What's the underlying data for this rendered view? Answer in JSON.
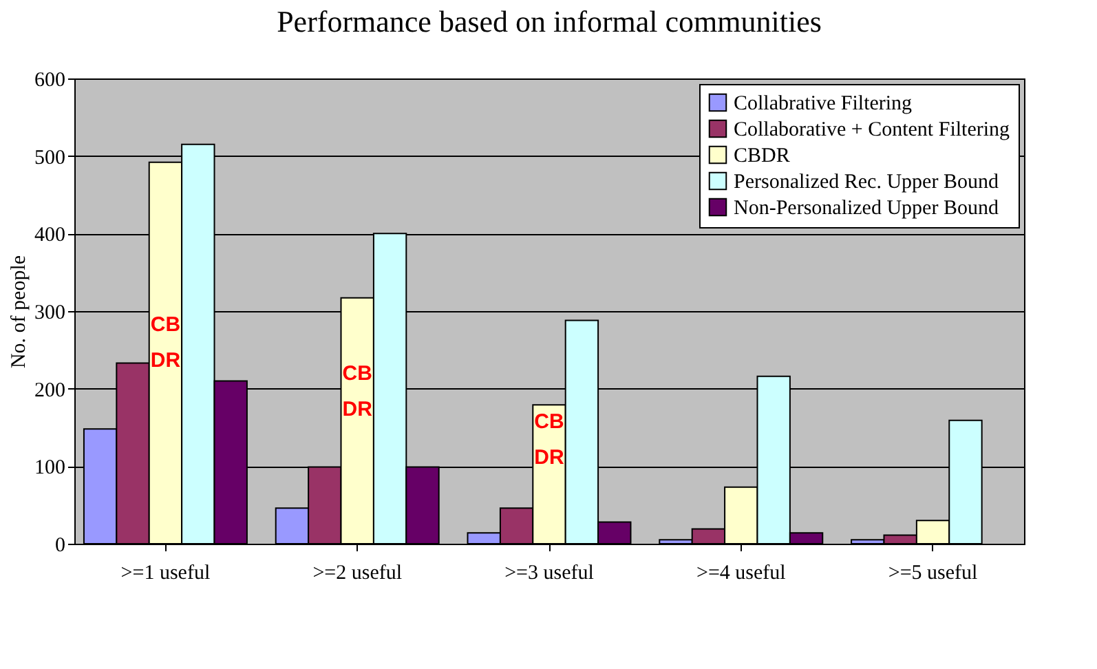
{
  "chart_data": {
    "type": "bar",
    "title": "Performance based on informal communities",
    "ylabel": "No. of people",
    "categories": [
      ">=1 useful",
      ">=2 useful",
      ">=3 useful",
      ">=4 useful",
      ">=5 useful"
    ],
    "series": [
      {
        "name": "Collabrative Filtering",
        "color": "#9999ff",
        "values": [
          148,
          46,
          14,
          5,
          5
        ]
      },
      {
        "name": "Collaborative + Content Filtering",
        "color": "#993366",
        "values": [
          233,
          99,
          46,
          19,
          11
        ]
      },
      {
        "name": "CBDR",
        "color": "#ffffcc",
        "values": [
          492,
          317,
          179,
          73,
          30
        ]
      },
      {
        "name": "Personalized Rec. Upper Bound",
        "color": "#ccffff",
        "values": [
          515,
          400,
          288,
          216,
          159
        ]
      },
      {
        "name": "Non-Personalized Upper Bound",
        "color": "#660066",
        "values": [
          210,
          99,
          28,
          14,
          null
        ]
      }
    ],
    "ylim": [
      0,
      600
    ],
    "yticks": [
      0,
      100,
      200,
      300,
      400,
      500,
      600
    ],
    "grid": "y",
    "legend": "top right",
    "annotations": [
      "CB\nDR",
      "CB\nDR",
      "CB\nDR"
    ]
  }
}
